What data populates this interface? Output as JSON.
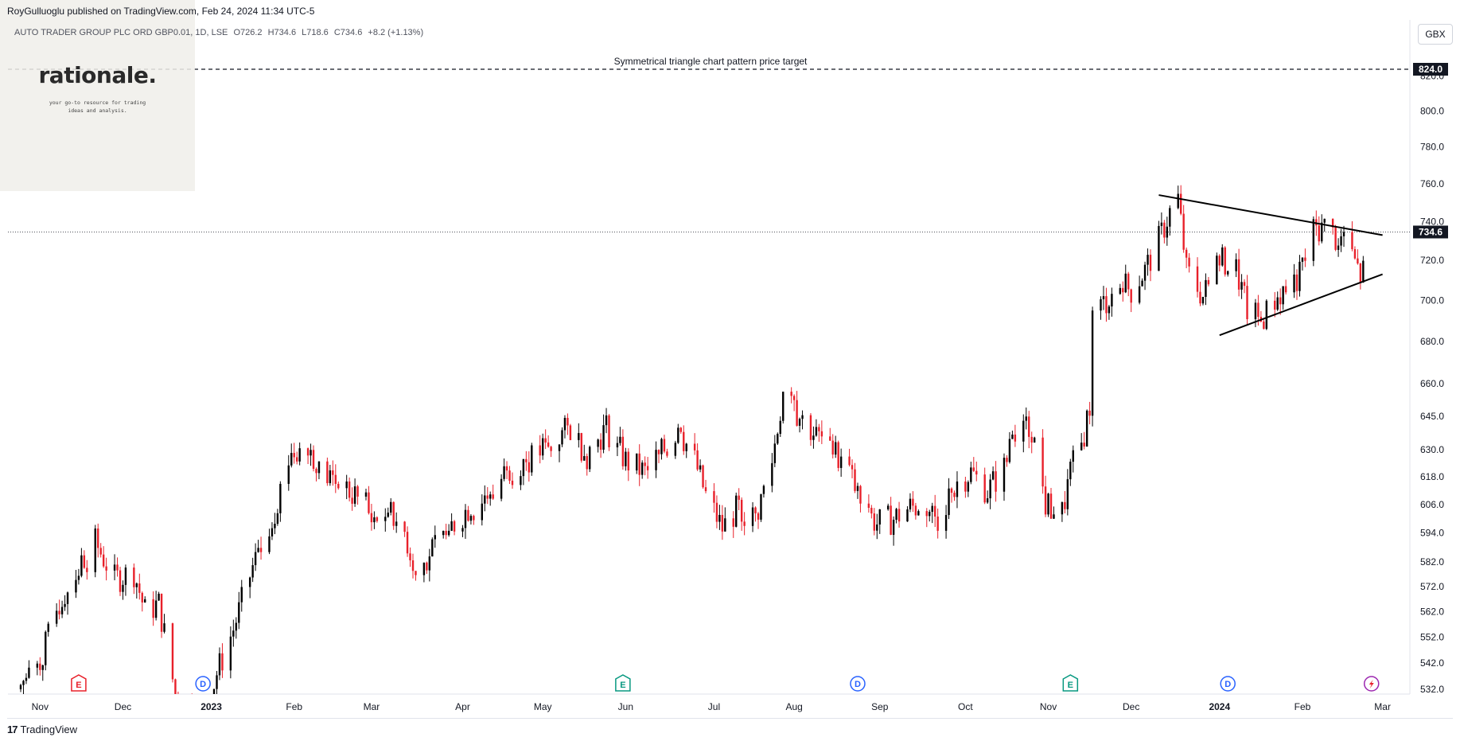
{
  "header": {
    "published_by": "RoyGulluoglu published on TradingView.com, Feb 24, 2024 11:34 UTC-5",
    "symbol": "AUTO TRADER GROUP PLC ORD GBP0.01, 1D, LSE",
    "open": "O726.2",
    "high": "H734.6",
    "low": "L718.6",
    "close": "C734.6",
    "change": "+8.2 (+1.13%)"
  },
  "logo": {
    "name": "rationale.",
    "tagline_1": "your go-to resource for trading",
    "tagline_2": "ideas and analysis."
  },
  "currency_button": "GBX",
  "footer": {
    "brand": "TradingView",
    "mark": "17"
  },
  "colors": {
    "up": "#000000",
    "down": "#e8202a",
    "axis_text": "#131722",
    "grid": "#e0e3eb"
  },
  "chart_data": {
    "type": "candlestick",
    "title": "AUTO TRADER GROUP PLC ORD GBP0.01, 1D, LSE",
    "price_scale": "log",
    "ylim": [
      532,
      830
    ],
    "y_ticks": [
      532.0,
      542.0,
      552.0,
      562.0,
      572.0,
      582.0,
      594.0,
      606.0,
      618.0,
      630.0,
      645.0,
      660.0,
      680.0,
      700.0,
      720.0,
      740.0,
      760.0,
      780.0,
      800.0,
      820.0
    ],
    "y_tick_labels": [
      "532.0",
      "542.0",
      "552.0",
      "562.0",
      "572.0",
      "582.0",
      "594.0",
      "606.0",
      "618.0",
      "630.0",
      "645.0",
      "660.0",
      "680.0",
      "700.0",
      "720.0",
      "740.0",
      "760.0",
      "780.0",
      "800.0",
      "820.0"
    ],
    "x_axis_labels": [
      {
        "label": "Nov",
        "date": "2022-11-01",
        "bold": false
      },
      {
        "label": "Dec",
        "date": "2022-12-01",
        "bold": false
      },
      {
        "label": "2023",
        "date": "2023-01-02",
        "bold": true
      },
      {
        "label": "Feb",
        "date": "2023-02-01",
        "bold": false
      },
      {
        "label": "Mar",
        "date": "2023-03-01",
        "bold": false
      },
      {
        "label": "Apr",
        "date": "2023-04-03",
        "bold": false
      },
      {
        "label": "May",
        "date": "2023-05-02",
        "bold": false
      },
      {
        "label": "Jun",
        "date": "2023-06-01",
        "bold": false
      },
      {
        "label": "Jul",
        "date": "2023-07-03",
        "bold": false
      },
      {
        "label": "Aug",
        "date": "2023-08-01",
        "bold": false
      },
      {
        "label": "Sep",
        "date": "2023-09-01",
        "bold": false
      },
      {
        "label": "Oct",
        "date": "2023-10-02",
        "bold": false
      },
      {
        "label": "Nov",
        "date": "2023-11-01",
        "bold": false
      },
      {
        "label": "Dec",
        "date": "2023-12-01",
        "bold": false
      },
      {
        "label": "2024",
        "date": "2024-01-02",
        "bold": true
      },
      {
        "label": "Feb",
        "date": "2024-02-01",
        "bold": false
      },
      {
        "label": "Mar",
        "date": "2024-03-01",
        "bold": false
      }
    ],
    "last_price": {
      "value": 734.6,
      "label": "734.6"
    },
    "target": {
      "value": 824.0,
      "label": "824.0",
      "annotation": "Symmetrical triangle chart pattern price target"
    },
    "trendlines": [
      {
        "name": "triangle-upper",
        "start": [
          "2023-12-11",
          754
        ],
        "end": [
          "2024-03-01",
          733
        ]
      },
      {
        "name": "triangle-lower",
        "start": [
          "2024-01-02",
          683
        ],
        "end": [
          "2024-03-01",
          713
        ]
      }
    ],
    "events": [
      {
        "type": "E",
        "date": "2022-11-15"
      },
      {
        "type": "D",
        "date": "2022-12-30"
      },
      {
        "type": "E",
        "date": "2023-05-31"
      },
      {
        "type": "D",
        "date": "2023-08-24"
      },
      {
        "type": "E",
        "date": "2023-11-09"
      },
      {
        "type": "D",
        "date": "2024-01-05"
      },
      {
        "type": "F",
        "date": "2024-02-26"
      }
    ],
    "close_path": [
      [
        "2022-10-25",
        532
      ],
      [
        "2022-11-02",
        545
      ],
      [
        "2022-11-08",
        565
      ],
      [
        "2022-11-14",
        578
      ],
      [
        "2022-11-21",
        590
      ],
      [
        "2022-11-28",
        575
      ],
      [
        "2022-12-05",
        578
      ],
      [
        "2022-12-09",
        562
      ],
      [
        "2022-12-14",
        565
      ],
      [
        "2022-12-20",
        530
      ],
      [
        "2022-12-30",
        520
      ],
      [
        "2023-01-04",
        538
      ],
      [
        "2023-01-10",
        555
      ],
      [
        "2023-01-17",
        580
      ],
      [
        "2023-01-24",
        600
      ],
      [
        "2023-01-31",
        630
      ],
      [
        "2023-02-06",
        634
      ],
      [
        "2023-02-10",
        620
      ],
      [
        "2023-02-17",
        616
      ],
      [
        "2023-02-23",
        610
      ],
      [
        "2023-03-01",
        600
      ],
      [
        "2023-03-08",
        602
      ],
      [
        "2023-03-13",
        594
      ],
      [
        "2023-03-17",
        578
      ],
      [
        "2023-03-24",
        588
      ],
      [
        "2023-03-31",
        598
      ],
      [
        "2023-04-06",
        606
      ],
      [
        "2023-04-14",
        612
      ],
      [
        "2023-04-21",
        624
      ],
      [
        "2023-04-28",
        626
      ],
      [
        "2023-05-05",
        633
      ],
      [
        "2023-05-12",
        640
      ],
      [
        "2023-05-18",
        628
      ],
      [
        "2023-05-25",
        640
      ],
      [
        "2023-06-01",
        625
      ],
      [
        "2023-06-08",
        620
      ],
      [
        "2023-06-14",
        628
      ],
      [
        "2023-06-20",
        640
      ],
      [
        "2023-06-26",
        625
      ],
      [
        "2023-06-30",
        610
      ],
      [
        "2023-07-06",
        596
      ],
      [
        "2023-07-12",
        605
      ],
      [
        "2023-07-18",
        600
      ],
      [
        "2023-07-24",
        625
      ],
      [
        "2023-07-28",
        655
      ],
      [
        "2023-08-03",
        645
      ],
      [
        "2023-08-09",
        636
      ],
      [
        "2023-08-15",
        630
      ],
      [
        "2023-08-21",
        620
      ],
      [
        "2023-08-25",
        606
      ],
      [
        "2023-08-31",
        598
      ],
      [
        "2023-09-06",
        600
      ],
      [
        "2023-09-12",
        605
      ],
      [
        "2023-09-18",
        605
      ],
      [
        "2023-09-22",
        600
      ],
      [
        "2023-09-28",
        615
      ],
      [
        "2023-10-04",
        620
      ],
      [
        "2023-10-10",
        612
      ],
      [
        "2023-10-16",
        622
      ],
      [
        "2023-10-20",
        637
      ],
      [
        "2023-10-26",
        640
      ],
      [
        "2023-10-31",
        606
      ],
      [
        "2023-11-06",
        602
      ],
      [
        "2023-11-09",
        620
      ],
      [
        "2023-11-13",
        632
      ],
      [
        "2023-11-16",
        650
      ],
      [
        "2023-11-17",
        692
      ],
      [
        "2023-11-22",
        700
      ],
      [
        "2023-11-28",
        708
      ],
      [
        "2023-12-01",
        705
      ],
      [
        "2023-12-06",
        715
      ],
      [
        "2023-12-11",
        730
      ],
      [
        "2023-12-15",
        745
      ],
      [
        "2023-12-18",
        752
      ],
      [
        "2023-12-21",
        715
      ],
      [
        "2023-12-27",
        702
      ],
      [
        "2024-01-02",
        720
      ],
      [
        "2024-01-08",
        715
      ],
      [
        "2024-01-12",
        695
      ],
      [
        "2024-01-17",
        690
      ],
      [
        "2024-01-22",
        700
      ],
      [
        "2024-01-26",
        706
      ],
      [
        "2024-01-31",
        712
      ],
      [
        "2024-02-05",
        735
      ],
      [
        "2024-02-09",
        738
      ],
      [
        "2024-02-14",
        730
      ],
      [
        "2024-02-19",
        722
      ],
      [
        "2024-02-22",
        712
      ],
      [
        "2024-02-26",
        720
      ],
      [
        "2024-03-01",
        732
      ],
      [
        "2024-03-05",
        735
      ]
    ]
  }
}
